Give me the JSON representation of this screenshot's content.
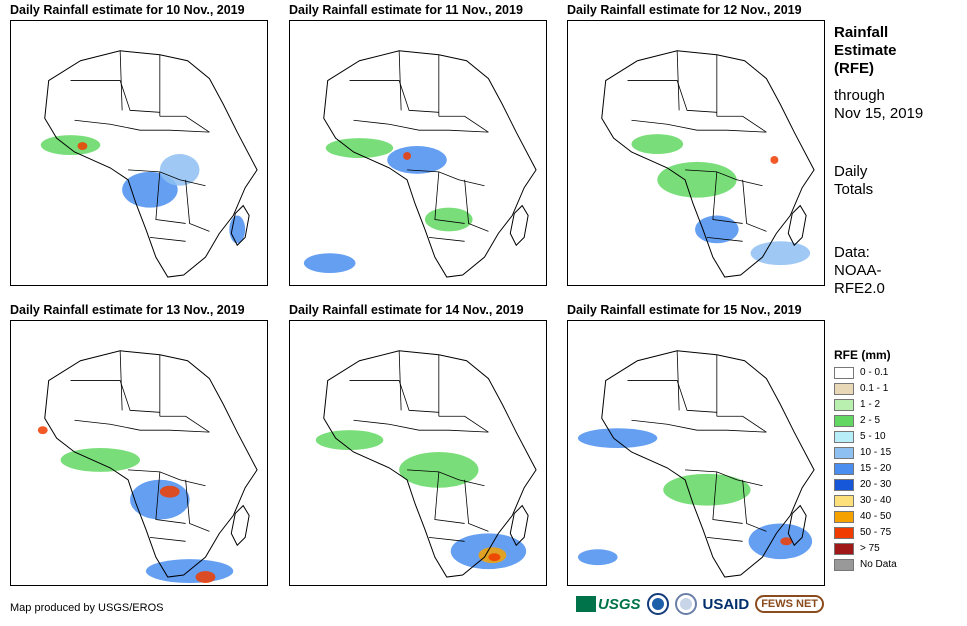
{
  "panels": [
    {
      "title": "Daily Rainfall estimate for 10 Nov., 2019"
    },
    {
      "title": "Daily Rainfall estimate for 11 Nov., 2019"
    },
    {
      "title": "Daily Rainfall estimate for 12 Nov., 2019"
    },
    {
      "title": "Daily Rainfall estimate for 13 Nov., 2019"
    },
    {
      "title": "Daily Rainfall estimate for 14 Nov., 2019"
    },
    {
      "title": "Daily Rainfall estimate for 15 Nov., 2019"
    }
  ],
  "sidebar": {
    "title_lines": [
      "Rainfall",
      "Estimate",
      "(RFE)"
    ],
    "through_lines": [
      "through",
      "Nov 15, 2019"
    ],
    "daily_lines": [
      "Daily",
      "Totals"
    ],
    "data_lines": [
      "Data:",
      "NOAA-",
      "RFE2.0"
    ]
  },
  "legend": {
    "title": "RFE (mm)",
    "items": [
      {
        "label": "0 - 0.1",
        "color": "#ffffff"
      },
      {
        "label": "0.1 - 1",
        "color": "#e8d8b8"
      },
      {
        "label": "1 - 2",
        "color": "#b9f0b0"
      },
      {
        "label": "2 - 5",
        "color": "#62d862"
      },
      {
        "label": "5 - 10",
        "color": "#b8eef8"
      },
      {
        "label": "10 - 15",
        "color": "#8ec0f2"
      },
      {
        "label": "15 - 20",
        "color": "#4a8ef0"
      },
      {
        "label": "20 - 30",
        "color": "#1656d8"
      },
      {
        "label": "30 - 40",
        "color": "#fde07a"
      },
      {
        "label": "40 - 50",
        "color": "#f5a200"
      },
      {
        "label": "50 - 75",
        "color": "#f03c00"
      },
      {
        "label": "> 75",
        "color": "#a01818"
      },
      {
        "label": "No Data",
        "color": "#999999"
      }
    ]
  },
  "footer": {
    "credit": "Map produced by USGS/EROS",
    "logos": {
      "usgs": "USGS",
      "usaid": "USAID",
      "fews": "FEWS NET"
    }
  }
}
